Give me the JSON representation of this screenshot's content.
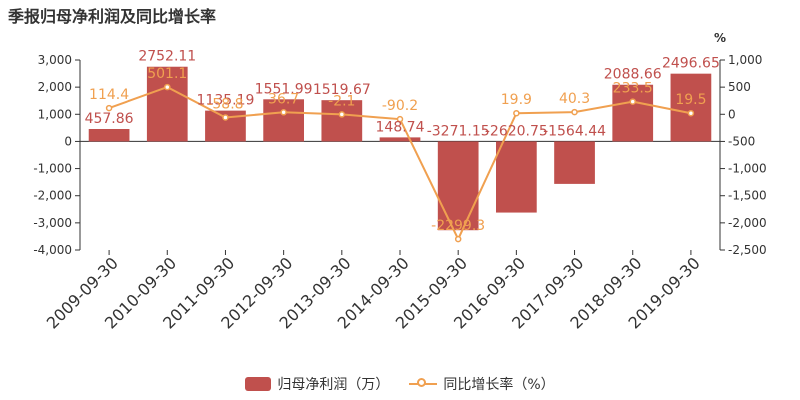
{
  "title": "季报归母净利润及同比增长率",
  "colors": {
    "bar": "#c0504d",
    "line": "#f0a050",
    "axis": "#333333",
    "grid": "#e0e0e0",
    "line_label": "#f0a050",
    "bar_label": "#c0504d"
  },
  "chart_data": {
    "type": "bar",
    "categories": [
      "2009-09-30",
      "2010-09-30",
      "2011-09-30",
      "2012-09-30",
      "2013-09-30",
      "2014-09-30",
      "2015-09-30",
      "2016-09-30",
      "2017-09-30",
      "2018-09-30",
      "2019-09-30"
    ],
    "series": [
      {
        "name": "归母净利润（万）",
        "type": "bar",
        "axis": "left",
        "values": [
          457.86,
          2752.11,
          1135.19,
          1551.99,
          1519.67,
          148.74,
          -3271.15,
          -2620.75,
          -1564.44,
          2088.66,
          2496.65
        ],
        "labels": [
          "457.86",
          "2752.11",
          "1135.19",
          "1551.99",
          "1519.67",
          "148.74",
          "-3271.15",
          "-2620.75",
          "-1564.44",
          "2088.66",
          "2496.65"
        ]
      },
      {
        "name": "同比增长率（%）",
        "type": "line",
        "axis": "right",
        "values": [
          114.4,
          501.1,
          -58.8,
          36.7,
          -2.1,
          -90.2,
          -2299.3,
          19.9,
          40.3,
          233.5,
          19.5
        ],
        "labels": [
          "114.4",
          "501.1",
          "-58.8",
          "36.7",
          "-2.1",
          "-90.2",
          "-2299.3",
          "19.9",
          "40.3",
          "233.5",
          "19.5"
        ]
      }
    ],
    "y_left": {
      "ylim": [
        -4000,
        3000
      ],
      "ticks": [
        3000,
        2000,
        1000,
        0,
        -1000,
        -2000,
        -3000,
        -4000
      ],
      "tick_labels": [
        "3,000",
        "2,000",
        "1,000",
        "0",
        "-1,000",
        "-2,000",
        "-3,000",
        "-4,000"
      ]
    },
    "y_right": {
      "unit": "%",
      "ylim": [
        -2500,
        1000
      ],
      "ticks": [
        1000,
        500,
        0,
        -500,
        -1000,
        -1500,
        -2000,
        -2500
      ],
      "tick_labels": [
        "1,000",
        "500",
        "0",
        "-500",
        "-1,000",
        "-1,500",
        "-2,000",
        "-2,500"
      ]
    },
    "grid": false,
    "legend": "bottom"
  }
}
